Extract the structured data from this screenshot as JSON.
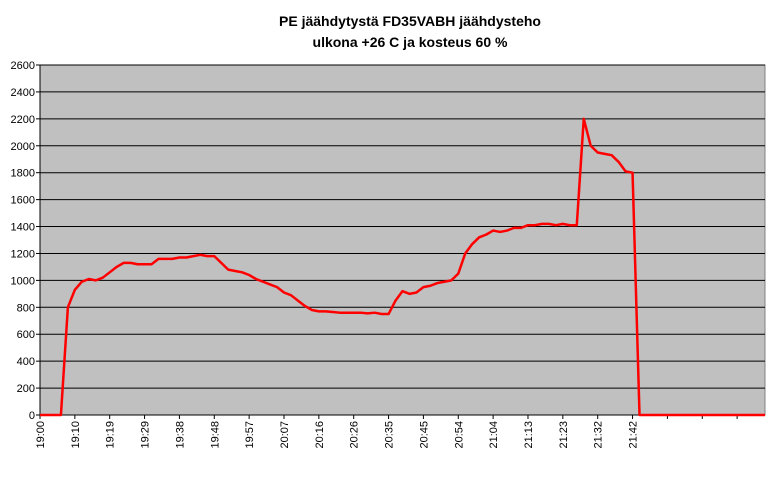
{
  "chart_data": {
    "type": "line",
    "title": "PE jäähdytystä FD35VABH jäähdysteho",
    "subtitle": "ulkona +26 C ja kosteus 60 %",
    "categories": [
      "19:00",
      null,
      null,
      null,
      null,
      "19:10",
      null,
      null,
      null,
      null,
      "19:19",
      null,
      null,
      null,
      null,
      "19:29",
      null,
      null,
      null,
      null,
      "19:38",
      null,
      null,
      null,
      null,
      "19:48",
      null,
      null,
      null,
      null,
      "19:57",
      null,
      null,
      null,
      null,
      "20:07",
      null,
      null,
      null,
      null,
      "20:16",
      null,
      null,
      null,
      null,
      "20:26",
      null,
      null,
      null,
      null,
      "20:35",
      null,
      null,
      null,
      null,
      "20:45",
      null,
      null,
      null,
      null,
      "20:54",
      null,
      null,
      null,
      null,
      "21:04",
      null,
      null,
      null,
      null,
      "21:13",
      null,
      null,
      null,
      null,
      "21:23",
      null,
      null,
      null,
      null,
      "21:32",
      null,
      null,
      null,
      null,
      "21:42",
      null,
      null,
      null,
      null,
      null,
      null,
      null,
      null,
      null,
      null,
      null,
      null,
      null,
      null,
      null,
      null,
      null,
      null,
      null
    ],
    "values": [
      0,
      0,
      0,
      0,
      800,
      930,
      990,
      1010,
      1000,
      1020,
      1060,
      1100,
      1130,
      1130,
      1120,
      1120,
      1120,
      1160,
      1160,
      1160,
      1170,
      1170,
      1180,
      1190,
      1180,
      1180,
      1130,
      1080,
      1070,
      1060,
      1040,
      1010,
      990,
      970,
      950,
      910,
      890,
      850,
      810,
      780,
      770,
      770,
      765,
      760,
      760,
      760,
      760,
      755,
      760,
      750,
      750,
      850,
      920,
      900,
      910,
      950,
      960,
      980,
      990,
      1000,
      1050,
      1200,
      1270,
      1320,
      1340,
      1370,
      1360,
      1370,
      1390,
      1390,
      1410,
      1410,
      1420,
      1420,
      1410,
      1420,
      1410,
      1410,
      2200,
      2000,
      1950,
      1940,
      1930,
      1880,
      1810,
      1800,
      0,
      0,
      0,
      0,
      0,
      0,
      0,
      0,
      0,
      0,
      0,
      0,
      0,
      0,
      0,
      0,
      0,
      0,
      0
    ],
    "color": "#ff0000",
    "ylim": [
      0,
      2600
    ],
    "yticks": [
      0,
      200,
      400,
      600,
      800,
      1000,
      1200,
      1400,
      1600,
      1800,
      2000,
      2200,
      2400,
      2600
    ],
    "grid": true
  }
}
